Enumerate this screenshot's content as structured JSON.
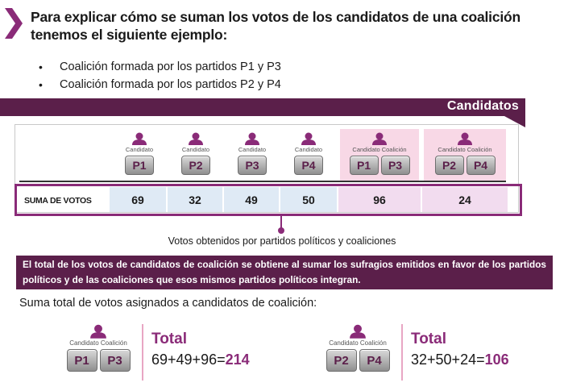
{
  "heading": "Para explicar cómo se suman los votos de los candidatos de una coalición tenemos el siguiente ejemplo:",
  "bullets": [
    "Coalición formada por los partidos P1 y P3",
    "Coalición formada por los partidos P2 y P4"
  ],
  "banner_label": "Candidatos",
  "candidates": [
    {
      "label": "Candidato",
      "chips": [
        "P1"
      ]
    },
    {
      "label": "Candidato",
      "chips": [
        "P2"
      ]
    },
    {
      "label": "Candidato",
      "chips": [
        "P3"
      ]
    },
    {
      "label": "Candidato",
      "chips": [
        "P4"
      ]
    },
    {
      "label": "Candidato Coalición",
      "chips": [
        "P1",
        "P3"
      ]
    },
    {
      "label": "Candidato Coalición",
      "chips": [
        "P2",
        "P4"
      ]
    }
  ],
  "sum_label": "SUMA DE VOTOS",
  "sums": [
    "69",
    "32",
    "49",
    "50",
    "96",
    "24"
  ],
  "caption": "Votos obtenidos por partidos políticos y coaliciones",
  "callout": "El total de los votos de candidatos de coalición se obtiene al sumar los sufragios emitidos en favor de los partidos políticos y de las coaliciones que esos mismos partidos políticos integran.",
  "subhead": "Suma total de votos asignados a candidatos de coalición:",
  "totals": [
    {
      "label": "Candidato Coalición",
      "chips": [
        "P1",
        "P3"
      ],
      "title": "Total",
      "formula": "69+49+96=",
      "result": "214"
    },
    {
      "label": "Candidato Coalición",
      "chips": [
        "P2",
        "P4"
      ],
      "title": "Total",
      "formula": "32+50+24=",
      "result": "106"
    }
  ],
  "colors": {
    "accent": "#5b1f4a",
    "magenta": "#8a2b78",
    "pink": "#f8d8e6",
    "blue": "#dfeaf5"
  }
}
